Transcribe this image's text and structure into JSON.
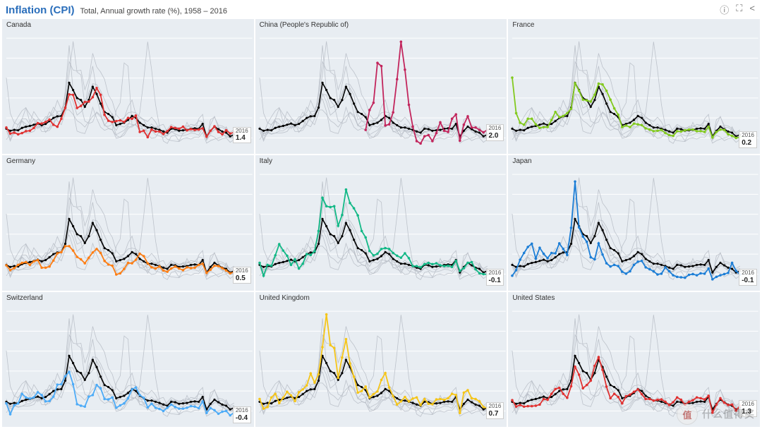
{
  "header": {
    "title": "Inflation (CPI)",
    "subtitle": "Total, Annual growth rate (%), 1958 – 2016",
    "icons": [
      "info-icon",
      "fullscreen-icon",
      "share-icon"
    ]
  },
  "chart": {
    "type": "small-multiples-line",
    "layout": {
      "rows": 3,
      "cols": 3,
      "panel_aspect": "358x194"
    },
    "x": {
      "start": 1958,
      "end": 2016,
      "grid": false
    },
    "y": {
      "min": -3,
      "max": 27,
      "gridlines": [
        0,
        5,
        10,
        15,
        20,
        25
      ],
      "grid_color": "#ffffff",
      "grid_width": 1
    },
    "panel_bg": "#e8edf2",
    "ghost_line": {
      "color": "#b8bec6",
      "width": 0.8,
      "opacity": 0.9
    },
    "avg_line": {
      "color": "#000000",
      "width": 1.6,
      "marker": "circle",
      "marker_r": 1.6,
      "marker_fill": "#000000"
    },
    "highlight_line": {
      "width": 1.8,
      "marker": "circle",
      "marker_r": 1.8
    },
    "end_label": {
      "year": "2016",
      "fontsize": 9,
      "bg": "#ffffff"
    },
    "title_fontsize": 10
  },
  "series": {
    "avg": [
      2.3,
      1.8,
      2.0,
      1.9,
      2.5,
      2.8,
      3.0,
      3.3,
      3.6,
      3.2,
      3.5,
      4.2,
      5.0,
      5.4,
      5.5,
      7.6,
      13.8,
      12.0,
      10.0,
      9.5,
      7.8,
      9.5,
      12.8,
      11.0,
      8.6,
      6.5,
      6.0,
      5.2,
      3.2,
      3.5,
      3.8,
      4.5,
      5.5,
      5.0,
      3.8,
      3.2,
      2.6,
      2.6,
      2.3,
      2.0,
      1.6,
      1.3,
      2.3,
      2.2,
      1.8,
      1.9,
      2.0,
      2.3,
      2.4,
      2.3,
      3.5,
      0.4,
      1.8,
      2.8,
      2.2,
      1.6,
      1.3,
      0.4,
      0.8
    ],
    "Canada": [
      2.6,
      1.1,
      1.3,
      0.9,
      1.2,
      1.7,
      1.8,
      2.5,
      3.7,
      3.6,
      4.0,
      4.6,
      3.3,
      2.8,
      4.8,
      7.5,
      10.9,
      10.8,
      7.5,
      8.0,
      9.0,
      9.1,
      10.2,
      12.5,
      10.8,
      5.8,
      4.3,
      4.0,
      4.2,
      4.4,
      4.0,
      5.0,
      4.8,
      5.6,
      1.5,
      1.8,
      0.2,
      2.1,
      1.6,
      1.6,
      1.0,
      1.7,
      2.7,
      2.5,
      2.3,
      2.8,
      1.9,
      2.2,
      2.0,
      2.1,
      2.4,
      0.3,
      1.8,
      2.9,
      1.5,
      0.9,
      1.9,
      1.1,
      1.4
    ],
    "China": [
      null,
      null,
      null,
      null,
      null,
      null,
      null,
      null,
      null,
      null,
      null,
      null,
      null,
      null,
      null,
      null,
      null,
      null,
      null,
      null,
      null,
      null,
      null,
      null,
      null,
      null,
      null,
      2.0,
      7.0,
      8.8,
      18.8,
      18.0,
      3.1,
      3.4,
      6.4,
      14.7,
      24.1,
      17.1,
      8.3,
      2.8,
      -0.8,
      -1.4,
      0.4,
      0.7,
      -0.8,
      1.2,
      3.9,
      1.8,
      1.5,
      4.8,
      5.9,
      -0.7,
      3.3,
      5.4,
      2.6,
      2.6,
      2.0,
      1.4,
      2.0
    ],
    "France": [
      15.1,
      6.2,
      3.8,
      3.3,
      4.8,
      4.8,
      3.4,
      2.5,
      2.7,
      2.7,
      4.5,
      6.5,
      5.2,
      5.5,
      6.2,
      7.3,
      13.7,
      11.8,
      9.6,
      9.4,
      9.1,
      10.8,
      13.6,
      13.4,
      11.8,
      9.6,
      7.4,
      5.8,
      2.7,
      3.1,
      2.7,
      3.6,
      3.4,
      3.2,
      2.4,
      2.1,
      1.7,
      1.8,
      2.0,
      1.2,
      0.7,
      0.5,
      1.7,
      1.6,
      1.9,
      2.1,
      2.1,
      1.7,
      1.7,
      1.5,
      2.8,
      0.1,
      1.5,
      2.1,
      2.0,
      0.9,
      0.5,
      0.0,
      0.2
    ],
    "Germany": [
      2.2,
      1.0,
      1.5,
      2.3,
      2.8,
      3.0,
      2.3,
      3.2,
      3.5,
      1.6,
      1.6,
      1.9,
      3.4,
      5.2,
      5.5,
      7.0,
      7.0,
      5.9,
      4.3,
      3.7,
      2.7,
      4.1,
      5.4,
      6.3,
      5.3,
      3.3,
      2.4,
      2.1,
      -0.1,
      0.2,
      1.3,
      2.8,
      2.7,
      3.6,
      5.1,
      4.5,
      2.7,
      1.7,
      1.4,
      1.9,
      0.9,
      0.6,
      1.4,
      1.9,
      1.4,
      1.0,
      1.7,
      1.5,
      1.6,
      2.3,
      2.6,
      0.3,
      1.1,
      2.1,
      2.0,
      1.5,
      0.9,
      0.2,
      0.5
    ],
    "Italy": [
      2.8,
      -0.4,
      2.3,
      2.1,
      4.7,
      7.5,
      5.9,
      4.6,
      2.3,
      3.7,
      1.4,
      2.6,
      5.0,
      4.8,
      5.7,
      10.8,
      19.1,
      17.0,
      16.8,
      17.0,
      12.1,
      14.8,
      21.2,
      17.8,
      16.5,
      14.7,
      10.8,
      9.2,
      5.8,
      4.7,
      5.1,
      6.3,
      6.5,
      6.3,
      5.3,
      4.6,
      4.1,
      5.2,
      4.0,
      2.0,
      2.0,
      1.7,
      2.5,
      2.8,
      2.5,
      2.7,
      2.2,
      2.0,
      2.1,
      1.8,
      3.3,
      0.8,
      1.5,
      2.8,
      3.0,
      1.2,
      0.2,
      0.0,
      -0.1
    ],
    "Japan": [
      -0.4,
      1.0,
      3.6,
      5.3,
      6.8,
      7.6,
      3.9,
      6.6,
      5.1,
      4.0,
      5.3,
      5.2,
      7.7,
      6.3,
      4.8,
      11.6,
      23.2,
      11.7,
      9.4,
      8.1,
      4.2,
      3.7,
      7.7,
      4.9,
      2.7,
      1.9,
      2.3,
      2.0,
      0.6,
      0.1,
      0.7,
      2.3,
      3.1,
      3.3,
      1.7,
      1.2,
      0.7,
      -0.1,
      0.1,
      1.7,
      0.7,
      -0.3,
      -0.7,
      -0.8,
      -0.9,
      -0.2,
      0.0,
      -0.3,
      0.2,
      0.1,
      1.4,
      -1.3,
      -0.7,
      -0.3,
      0.0,
      0.3,
      2.8,
      0.8,
      -0.1
    ],
    "Switzerland": [
      1.9,
      -0.8,
      1.4,
      1.9,
      4.3,
      3.4,
      3.1,
      3.4,
      4.7,
      4.0,
      2.4,
      2.5,
      3.6,
      6.6,
      6.7,
      8.7,
      9.8,
      6.7,
      1.7,
      1.3,
      1.1,
      3.6,
      4.0,
      6.5,
      5.7,
      3.0,
      2.9,
      3.4,
      0.8,
      1.4,
      1.9,
      3.2,
      5.4,
      5.9,
      4.0,
      3.3,
      0.9,
      1.8,
      0.8,
      0.5,
      0.0,
      0.8,
      1.6,
      1.0,
      0.6,
      0.6,
      0.8,
      1.2,
      1.1,
      0.7,
      2.4,
      -0.5,
      0.7,
      0.2,
      -0.7,
      -0.2,
      0.0,
      -1.1,
      -0.4
    ],
    "United Kingdom": [
      3.0,
      0.6,
      1.0,
      3.4,
      4.3,
      2.0,
      3.3,
      4.8,
      3.9,
      2.5,
      4.7,
      5.4,
      6.4,
      9.4,
      7.1,
      9.2,
      16.0,
      24.2,
      16.5,
      15.8,
      8.3,
      13.4,
      18.0,
      11.9,
      8.6,
      4.6,
      5.0,
      6.1,
      3.4,
      4.2,
      4.9,
      7.8,
      9.5,
      5.9,
      3.7,
      1.6,
      2.4,
      3.5,
      2.4,
      3.1,
      3.4,
      1.5,
      3.0,
      1.8,
      1.7,
      2.9,
      3.0,
      2.8,
      3.2,
      4.3,
      4.0,
      -0.5,
      4.6,
      5.2,
      3.2,
      3.0,
      2.4,
      1.0,
      0.7
    ],
    "United States": [
      2.7,
      1.1,
      1.5,
      1.1,
      1.2,
      1.2,
      1.3,
      1.6,
      3.0,
      2.8,
      4.3,
      5.5,
      5.8,
      4.3,
      3.3,
      6.2,
      11.1,
      9.1,
      5.7,
      6.5,
      7.6,
      11.3,
      13.5,
      10.3,
      6.1,
      3.2,
      4.3,
      3.5,
      1.9,
      3.7,
      4.1,
      4.8,
      5.4,
      4.2,
      3.0,
      3.0,
      2.6,
      2.8,
      2.9,
      2.3,
      1.5,
      2.2,
      3.4,
      2.8,
      1.6,
      2.3,
      2.7,
      3.4,
      3.2,
      2.9,
      3.8,
      -0.4,
      1.6,
      3.2,
      2.1,
      1.5,
      1.6,
      0.1,
      1.3
    ]
  },
  "panels": [
    {
      "country": "Canada",
      "color": "#e03131",
      "end_value": "1.4"
    },
    {
      "country": "China (People's Republic of)",
      "key": "China",
      "color": "#c2255c",
      "end_value": "2.0"
    },
    {
      "country": "France",
      "color": "#82c91e",
      "end_value": "0.2"
    },
    {
      "country": "Germany",
      "color": "#fd7e14",
      "end_value": "0.5"
    },
    {
      "country": "Italy",
      "color": "#12b886",
      "end_value": "-0.1"
    },
    {
      "country": "Japan",
      "color": "#1c7ed6",
      "end_value": "-0.1"
    },
    {
      "country": "Switzerland",
      "color": "#4dabf7",
      "end_value": "-0.4"
    },
    {
      "country": "United Kingdom",
      "color": "#f5c518",
      "end_value": "0.7"
    },
    {
      "country": "United States",
      "color": "#e03131",
      "end_value": "1.3"
    }
  ],
  "ghost_keys": [
    "Canada",
    "China",
    "France",
    "Germany",
    "Italy",
    "Japan",
    "Switzerland",
    "United Kingdom",
    "United States"
  ],
  "watermark": {
    "badge": "值",
    "text": "什么值得买"
  }
}
